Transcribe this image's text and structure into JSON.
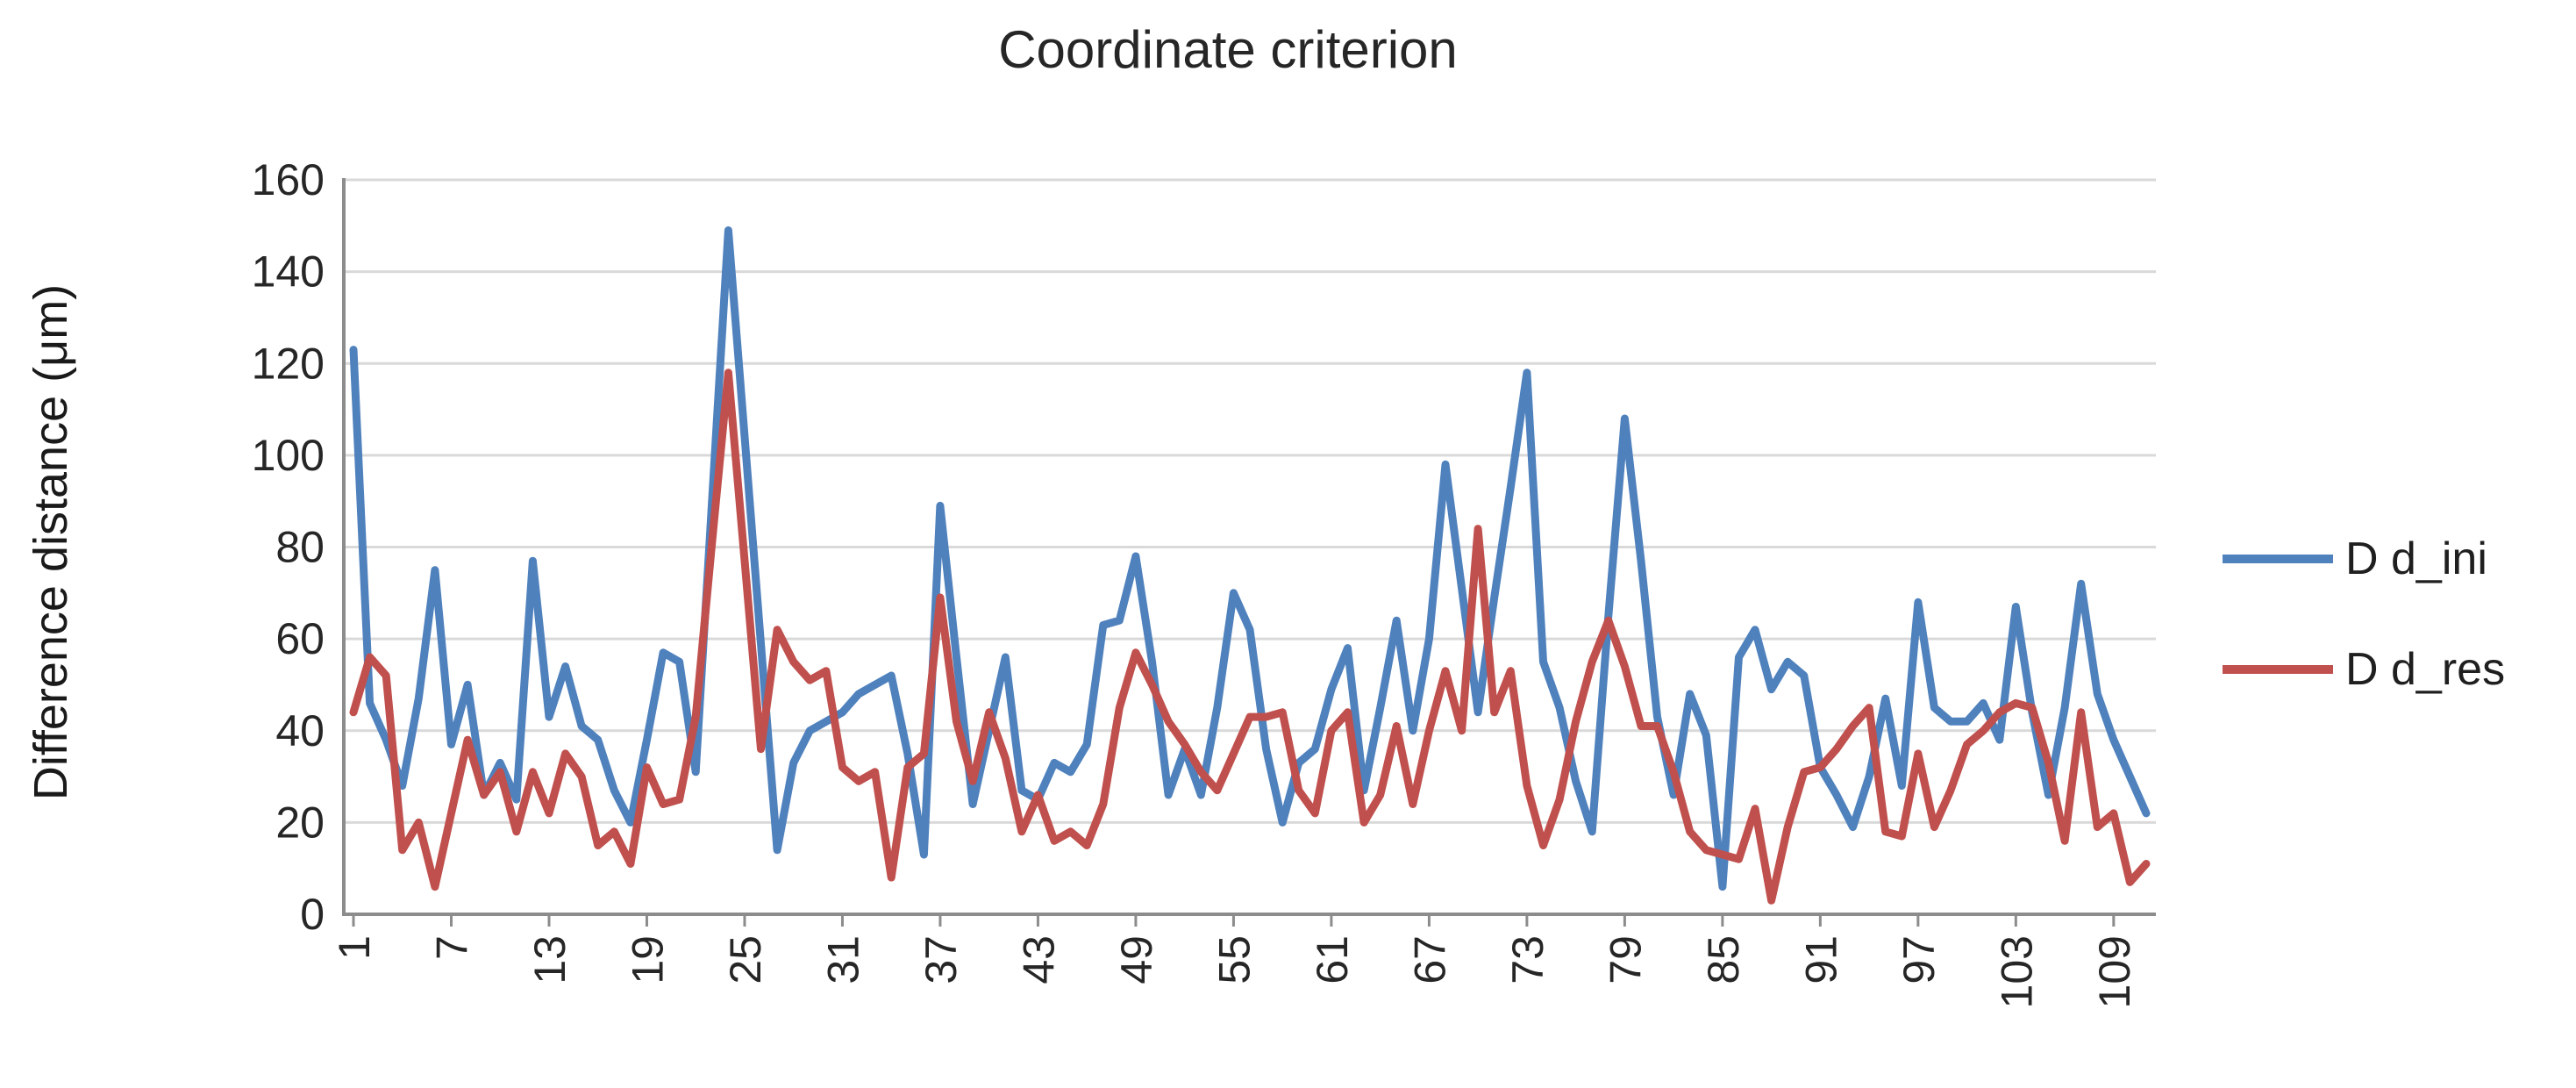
{
  "title": "Coordinate criterion",
  "y_axis": {
    "label": "Difference distance (μm)",
    "min": 0,
    "max": 160,
    "step": 20,
    "tick_labels": [
      "0",
      "20",
      "40",
      "60",
      "80",
      "100",
      "120",
      "140",
      "160"
    ]
  },
  "x_axis": {
    "tick_labels": [
      "1",
      "7",
      "13",
      "19",
      "25",
      "31",
      "37",
      "43",
      "49",
      "55",
      "61",
      "67",
      "73",
      "79",
      "85",
      "91",
      "97",
      "103",
      "109"
    ],
    "tick_step": 6
  },
  "legend": {
    "position": "right",
    "items": [
      {
        "label": "D d_ini",
        "color": "#4F81BD"
      },
      {
        "label": "D d_res",
        "color": "#C0504D"
      }
    ]
  },
  "colors": {
    "series_blue": "#4F81BD",
    "series_red": "#C0504D",
    "gridline": "#D9D9D9",
    "axis": "#8C8C8C",
    "text": "#262626",
    "background": "#FFFFFF"
  },
  "chart_data": {
    "type": "line",
    "title": "Coordinate criterion",
    "xlabel": "",
    "ylabel": "Difference distance (μm)",
    "ylim": [
      0,
      160
    ],
    "x_start": 1,
    "x_step": 1,
    "n_points": 111,
    "x_tick_labels": [
      "1",
      "7",
      "13",
      "19",
      "25",
      "31",
      "37",
      "43",
      "49",
      "55",
      "61",
      "67",
      "73",
      "79",
      "85",
      "91",
      "97",
      "103",
      "109"
    ],
    "grid": "horizontal",
    "legend_position": "right",
    "series": [
      {
        "name": "D d_ini",
        "color": "#4F81BD",
        "values": [
          123,
          46,
          38,
          28,
          47,
          75,
          37,
          50,
          26,
          33,
          25,
          77,
          43,
          54,
          41,
          38,
          27,
          20,
          38,
          57,
          55,
          31,
          90,
          149,
          104,
          59,
          14,
          33,
          40,
          42,
          44,
          48,
          50,
          52,
          35,
          13,
          89,
          56,
          24,
          40,
          56,
          27,
          25,
          33,
          31,
          37,
          63,
          64,
          78,
          55,
          26,
          36,
          26,
          45,
          70,
          62,
          36,
          20,
          33,
          36,
          49,
          58,
          27,
          45,
          64,
          40,
          60,
          98,
          71,
          44,
          69,
          93,
          118,
          55,
          45,
          29,
          18,
          65,
          108,
          77,
          43,
          26,
          48,
          39,
          6,
          56,
          62,
          49,
          55,
          52,
          32,
          26,
          19,
          30,
          47,
          28,
          68,
          45,
          42,
          42,
          46,
          38,
          67,
          44,
          26,
          45,
          72,
          48,
          38,
          30,
          22
        ]
      },
      {
        "name": "D d_res",
        "color": "#C0504D",
        "values": [
          44,
          56,
          52,
          14,
          20,
          6,
          22,
          38,
          26,
          31,
          18,
          31,
          22,
          35,
          30,
          15,
          18,
          11,
          32,
          24,
          25,
          43,
          81,
          118,
          77,
          36,
          62,
          55,
          51,
          53,
          32,
          29,
          31,
          8,
          32,
          35,
          69,
          42,
          29,
          44,
          34,
          18,
          26,
          16,
          18,
          15,
          24,
          45,
          57,
          50,
          42,
          37,
          31,
          27,
          35,
          43,
          43,
          44,
          27,
          22,
          40,
          44,
          20,
          26,
          41,
          24,
          40,
          53,
          40,
          84,
          44,
          53,
          28,
          15,
          25,
          42,
          55,
          64,
          54,
          41,
          41,
          31,
          18,
          14,
          13,
          12,
          23,
          3,
          19,
          31,
          32,
          36,
          41,
          45,
          18,
          17,
          35,
          19,
          27,
          37,
          40,
          44,
          46,
          45,
          33,
          16,
          44,
          19,
          22,
          7,
          11
        ]
      }
    ]
  }
}
